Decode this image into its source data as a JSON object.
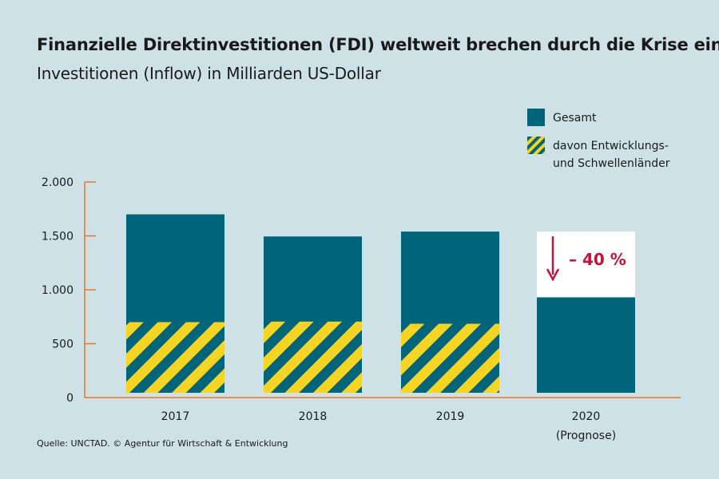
{
  "colors": {
    "background": "#cde1e7",
    "total": "#00647a",
    "developing_stripe": "#f5d424",
    "axis": "#e87722",
    "decline": "#c2133b",
    "decline_box": "#ffffff"
  },
  "chart_data": {
    "type": "bar",
    "title": "Finanzielle Direktinvestitionen (FDI) weltweit brechen durch die Krise ein",
    "subtitle": "Investitionen (Inflow) in Milliarden US-Dollar",
    "categories": [
      "2017",
      "2018",
      "2019",
      "2020"
    ],
    "category_notes": [
      "",
      "",
      "",
      "(Prognose)"
    ],
    "series": [
      {
        "name": "Gesamt",
        "values": [
          1700,
          1495,
          1540,
          930
        ]
      },
      {
        "name": "davon Entwicklungs- und Schwellenländer",
        "values": [
          700,
          705,
          685,
          null
        ]
      }
    ],
    "reference_2019": 1540,
    "ylim": [
      0,
      2000
    ],
    "yticks": [
      0,
      500,
      1000,
      1500,
      2000
    ],
    "ytick_labels": [
      "0",
      "500",
      "1.000",
      "1.500",
      "2.000"
    ],
    "annotation": {
      "category": "2020",
      "text": "– 40 %"
    },
    "legend": {
      "placement": "top-right",
      "entries": [
        {
          "lines": [
            "Gesamt"
          ],
          "pattern": "solid"
        },
        {
          "lines": [
            "davon Entwicklungs-",
            "und Schwellenländer"
          ],
          "pattern": "stripes"
        }
      ]
    },
    "grid": false
  },
  "source": "Quelle: UNCTAD. © Agentur für Wirtschaft & Entwicklung"
}
